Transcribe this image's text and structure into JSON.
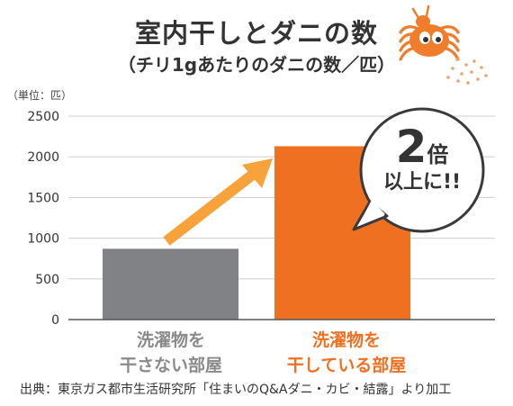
{
  "header": {
    "title": "室内干しとダニの数",
    "subtitle": "（チリ1gあたりのダニの数／匹）"
  },
  "chart_data": {
    "type": "bar",
    "unit_label": "（単位：匹）",
    "categories": [
      {
        "line1": "洗濯物を",
        "line2": "干さない部屋"
      },
      {
        "line1": "洗濯物を",
        "line2": "干している部屋"
      }
    ],
    "values": [
      870,
      2130
    ],
    "colors": [
      "#808285",
      "#f07022"
    ],
    "ylim": [
      0,
      2500
    ],
    "yticks": [
      0,
      500,
      1000,
      1500,
      2000,
      2500
    ],
    "grid": true,
    "legend": "none"
  },
  "callout": {
    "big": "2",
    "small": "倍",
    "line2": "以上に!!"
  },
  "colors": {
    "arrow": "#f7a23b",
    "mite": "#ef7d2c",
    "grid": "#cfcfcf",
    "axis": "#555555"
  },
  "icons": [
    "mite-icon",
    "dust-dots-icon"
  ],
  "source": "出典：東京ガス都市生活研究所「住まいのQ&Aダニ・カビ・結露」より加工"
}
